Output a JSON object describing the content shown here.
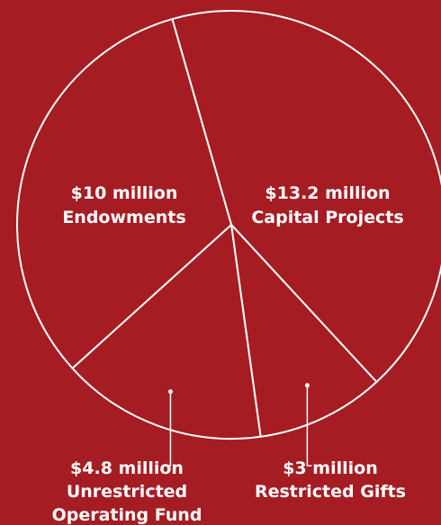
{
  "colors": {
    "background": "#a51d23",
    "stroke": "#ffffff",
    "text": "#ffffff"
  },
  "chart_data": {
    "type": "pie",
    "title": "",
    "legend": "none",
    "slices": [
      {
        "value_label": "$13.2 million",
        "category": [
          "Capital Projects"
        ],
        "value": 13.2,
        "unit": "million USD"
      },
      {
        "value_label": "$3 million",
        "category": [
          "Restricted Gifts"
        ],
        "value": 3,
        "unit": "million USD"
      },
      {
        "value_label": "$4.8 million",
        "category": [
          "Unrestricted",
          "Operating Fund"
        ],
        "value": 4.8,
        "unit": "million USD"
      },
      {
        "value_label": "$10 million",
        "category": [
          "Endowments"
        ],
        "value": 10,
        "unit": "million USD"
      }
    ]
  }
}
